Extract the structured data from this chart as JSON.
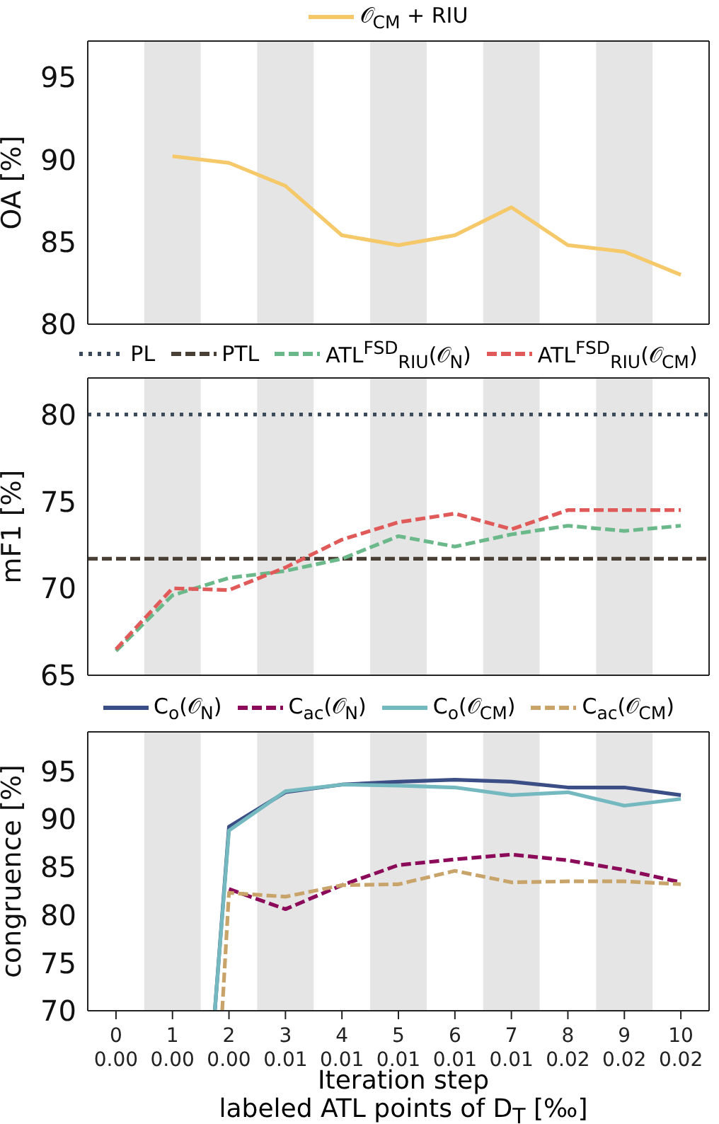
{
  "chart_data": [
    {
      "type": "line",
      "ylabel": "OA [%]",
      "x": [
        1,
        2,
        3,
        4,
        5,
        6,
        7,
        8,
        9,
        10
      ],
      "xlim": [
        -0.5,
        10.5
      ],
      "ylim": [
        80,
        97.2
      ],
      "yticks": [
        80,
        85,
        90,
        95
      ],
      "tick_labels": "y",
      "legend": "top",
      "marker": "none",
      "bands": [
        {
          "axis": "x",
          "from": 0.5,
          "to": 1.5,
          "color": "#e5e5e5"
        },
        {
          "axis": "x",
          "from": 2.5,
          "to": 3.5,
          "color": "#e5e5e5"
        },
        {
          "axis": "x",
          "from": 4.5,
          "to": 5.5,
          "color": "#e5e5e5"
        },
        {
          "axis": "x",
          "from": 6.5,
          "to": 7.5,
          "color": "#e5e5e5"
        },
        {
          "axis": "x",
          "from": 8.5,
          "to": 9.5,
          "color": "#e5e5e5"
        }
      ],
      "series": [
        {
          "name": "𝒪$_{CM}$ + RIU",
          "color": "#f5c96a",
          "line_style": "solid",
          "values": [
            90.2,
            89.8,
            88.4,
            85.4,
            84.8,
            85.4,
            87.1,
            84.8,
            84.4,
            83.0
          ]
        }
      ]
    },
    {
      "type": "line",
      "ylabel": "mF1 [%]",
      "x": [
        0,
        1,
        2,
        3,
        4,
        5,
        6,
        7,
        8,
        9,
        10
      ],
      "xlim": [
        -0.5,
        10.5
      ],
      "ylim": [
        65,
        82.1
      ],
      "yticks": [
        65,
        70,
        75,
        80
      ],
      "tick_labels": "y",
      "legend": "top",
      "marker": "none",
      "bands": [
        {
          "axis": "x",
          "from": 0.5,
          "to": 1.5,
          "color": "#e5e5e5"
        },
        {
          "axis": "x",
          "from": 2.5,
          "to": 3.5,
          "color": "#e5e5e5"
        },
        {
          "axis": "x",
          "from": 4.5,
          "to": 5.5,
          "color": "#e5e5e5"
        },
        {
          "axis": "x",
          "from": 6.5,
          "to": 7.5,
          "color": "#e5e5e5"
        },
        {
          "axis": "x",
          "from": 8.5,
          "to": 9.5,
          "color": "#e5e5e5"
        }
      ],
      "series": [
        {
          "name": "PL",
          "color": "#3b4a5a",
          "line_style": "dotted",
          "x": [
            -0.5,
            10.5
          ],
          "values": [
            80,
            80
          ]
        },
        {
          "name": "PTL",
          "color": "#4a3f35",
          "line_style": "dashed",
          "x": [
            -0.5,
            10.5
          ],
          "values": [
            71.7,
            71.7
          ]
        },
        {
          "name": "ATL$^{FSD}$$_{RIU}$(𝒪$_{N}$)",
          "color": "#6bb88a",
          "line_style": "dashed",
          "values": [
            66.4,
            69.6,
            70.6,
            71.0,
            71.7,
            73.0,
            72.4,
            73.1,
            73.6,
            73.3,
            73.6
          ]
        },
        {
          "name": "ATL$^{FSD}$$_{RIU}$(𝒪$_{CM}$)",
          "color": "#e05a5a",
          "line_style": "dashed",
          "values": [
            66.5,
            70.0,
            69.9,
            71.2,
            72.8,
            73.8,
            74.3,
            73.4,
            74.5,
            74.5,
            74.5
          ]
        }
      ]
    },
    {
      "type": "line",
      "ylabel": "congruence [%]",
      "xlabel": "Iteration step",
      "x2label": "labeled ATL points of D$_{T}$ [‰]",
      "x": [
        2,
        3,
        4,
        5,
        6,
        7,
        8,
        9,
        10
      ],
      "xlim": [
        -0.5,
        10.5
      ],
      "xticks": [
        0,
        1,
        2,
        3,
        4,
        5,
        6,
        7,
        8,
        9,
        10
      ],
      "x2lim": [
        -0.001,
        0.021
      ],
      "x2ticks": [
        {
          "value": 0,
          "label": "0.00"
        },
        {
          "value": 0.002,
          "label": "0.00"
        },
        {
          "value": 0.004,
          "label": "0.00"
        },
        {
          "value": 0.006,
          "label": "0.01"
        },
        {
          "value": 0.008,
          "label": "0.01"
        },
        {
          "value": 0.01,
          "label": "0.01"
        },
        {
          "value": 0.012,
          "label": "0.01"
        },
        {
          "value": 0.014,
          "label": "0.01"
        },
        {
          "value": 0.016,
          "label": "0.02"
        },
        {
          "value": 0.018,
          "label": "0.02"
        },
        {
          "value": 0.02,
          "label": "0.02"
        }
      ],
      "ylim": [
        70,
        99.1
      ],
      "yticks": [
        70,
        75,
        80,
        85,
        90,
        95
      ],
      "legend": "top",
      "marker": "none",
      "bands": [
        {
          "axis": "x",
          "from": 0.5,
          "to": 1.5,
          "color": "#e5e5e5"
        },
        {
          "axis": "x",
          "from": 2.5,
          "to": 3.5,
          "color": "#e5e5e5"
        },
        {
          "axis": "x",
          "from": 4.5,
          "to": 5.5,
          "color": "#e5e5e5"
        },
        {
          "axis": "x",
          "from": 6.5,
          "to": 7.5,
          "color": "#e5e5e5"
        },
        {
          "axis": "x",
          "from": 8.5,
          "to": 9.5,
          "color": "#e5e5e5"
        }
      ],
      "series": [
        {
          "name": "C$_{o}$(𝒪$_{N}$)",
          "color": "#3b4e85",
          "line_style": "solid",
          "x": [
            1.75,
            2,
            3,
            4,
            5,
            6,
            7,
            8,
            9,
            10
          ],
          "values": [
            70,
            89.2,
            92.8,
            93.6,
            93.9,
            94.1,
            93.9,
            93.3,
            93.3,
            92.5
          ]
        },
        {
          "name": "C$_{ac}$(𝒪$_{N}$)",
          "color": "#8b0a5a",
          "line_style": "dashed",
          "values": [
            82.7,
            80.6,
            83.1,
            85.2,
            85.8,
            86.3,
            85.7,
            84.7,
            83.4
          ]
        },
        {
          "name": "C$_{o}$(𝒪$_{CM}$)",
          "color": "#74b8c0",
          "line_style": "solid",
          "x": [
            1.75,
            2,
            3,
            4,
            5,
            6,
            7,
            8,
            9,
            10
          ],
          "values": [
            70,
            88.8,
            92.9,
            93.6,
            93.5,
            93.3,
            92.5,
            92.8,
            91.4,
            92.1
          ]
        },
        {
          "name": "C$_{ac}$(𝒪$_{CM}$)",
          "color": "#c8a46a",
          "line_style": "dashed",
          "x": [
            1.88,
            2,
            3,
            4,
            5,
            6,
            7,
            8,
            9,
            10
          ],
          "values": [
            70,
            82.3,
            81.9,
            83.1,
            83.2,
            84.6,
            83.4,
            83.5,
            83.5,
            83.2
          ]
        }
      ]
    }
  ]
}
